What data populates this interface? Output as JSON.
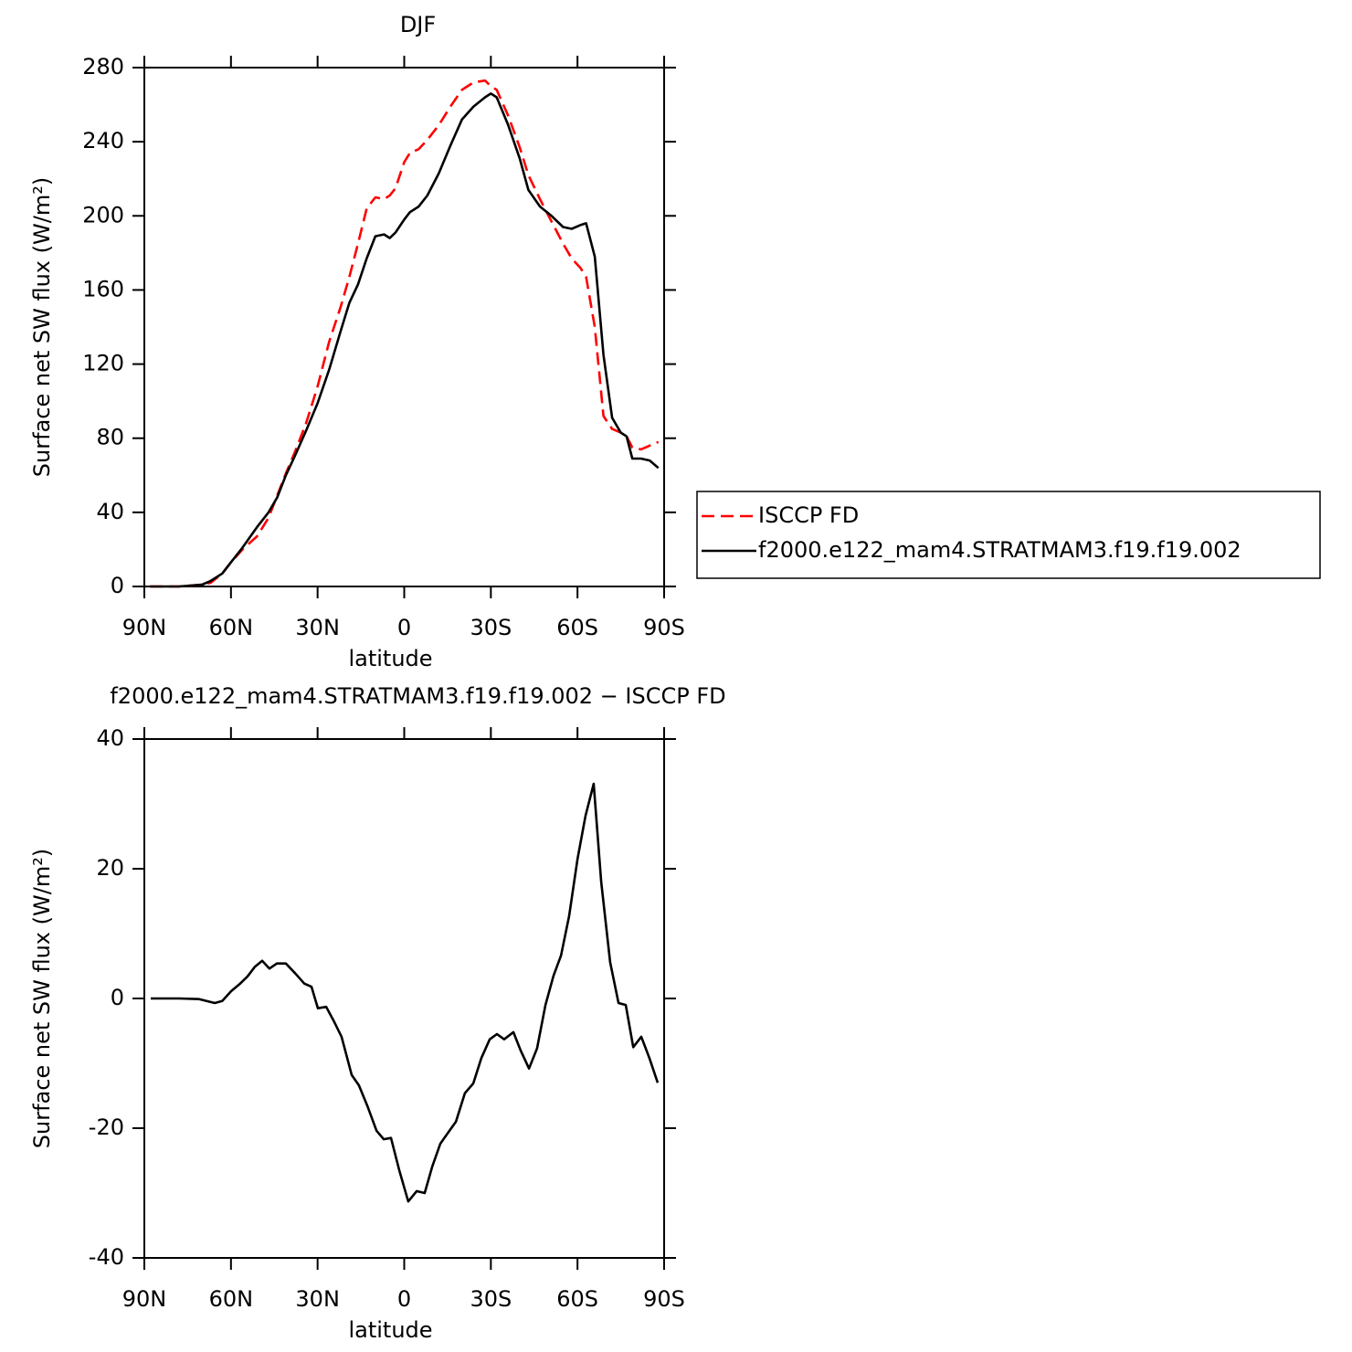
{
  "chart_data": [
    {
      "type": "line",
      "title": "DJF",
      "xlabel": "latitude",
      "ylabel": "Surface net SW flux (W/m²)",
      "x": [
        88,
        78,
        70,
        67,
        63,
        60,
        56,
        51,
        47,
        44,
        41,
        38,
        34,
        30,
        26,
        22,
        19,
        16,
        13,
        10,
        7,
        5,
        3,
        0,
        -2,
        -5,
        -8,
        -12,
        -16,
        -20,
        -24,
        -28,
        -30,
        -32,
        -36,
        -40,
        -43,
        -47,
        -51,
        -55,
        -58,
        -61,
        -63,
        -66,
        -69,
        -72,
        -75,
        -77,
        -79,
        -82,
        -85,
        -88
      ],
      "series": [
        {
          "name": "ISCCP FD",
          "color": "#ff0000",
          "dashed": true,
          "values": [
            0,
            0,
            1,
            2,
            7,
            13,
            20,
            27,
            37,
            49,
            61,
            72,
            88,
            108,
            132,
            151,
            167,
            185,
            204,
            210,
            209,
            211,
            215,
            229,
            234,
            236,
            241,
            249,
            259,
            268,
            272,
            273,
            270,
            268,
            254,
            237,
            222,
            209,
            197,
            185,
            177,
            172,
            167,
            140,
            92,
            85,
            83,
            81,
            75,
            74,
            76,
            78
          ]
        },
        {
          "name": "f2000.e122_mam4.STRATMAM3.f19.f19.002",
          "color": "#000000",
          "dashed": false,
          "values": [
            0,
            0,
            1,
            3,
            7,
            13,
            21,
            32,
            40,
            48,
            60,
            70,
            84,
            99,
            117,
            138,
            153,
            163,
            177,
            189,
            190,
            188,
            191,
            198,
            202,
            205,
            211,
            223,
            238,
            252,
            259,
            264,
            266,
            264,
            249,
            231,
            214,
            205,
            200,
            194,
            193,
            195,
            196,
            178,
            125,
            91,
            83,
            81,
            69,
            69,
            68,
            64
          ]
        }
      ],
      "xlim": [
        90,
        -90
      ],
      "xticks": [
        {
          "value": 90,
          "label": "90N"
        },
        {
          "value": 60,
          "label": "60N"
        },
        {
          "value": 30,
          "label": "30N"
        },
        0,
        {
          "value": -30,
          "label": "30S"
        },
        {
          "value": -60,
          "label": "60S"
        },
        {
          "value": -90,
          "label": "90S"
        }
      ],
      "ylim": [
        0,
        280
      ],
      "yticks": [
        0,
        40,
        80,
        120,
        160,
        200,
        240,
        280
      ],
      "legend": "right"
    },
    {
      "type": "line",
      "title": "f2000.e122_mam4.STRATMAM3.f19.f19.002 − ISCCP FD",
      "xlabel": "latitude",
      "ylabel": "Surface net SW flux (W/m²)",
      "x": [
        87.8,
        78,
        71,
        65.6,
        63,
        60,
        56.8,
        54.3,
        51.7,
        49.2,
        46.7,
        44.1,
        41,
        37.8,
        34.6,
        32.1,
        29.9,
        27,
        24.5,
        21.7,
        18.2,
        15.7,
        12.8,
        9.6,
        7.1,
        4.6,
        1.7,
        -1.4,
        -4.3,
        -7.1,
        -9.7,
        -12.5,
        -15,
        -17.9,
        -21,
        -23.9,
        -26.7,
        -29.6,
        -32.1,
        -34.6,
        -37.8,
        -40.3,
        -43.2,
        -46,
        -48.9,
        -51.7,
        -54.3,
        -57.1,
        -60,
        -62.8,
        -65.6,
        -68.2,
        -71.3,
        -74.2,
        -76.7,
        -79.3,
        -82.1,
        -84.9,
        -87.8
      ],
      "series": [
        {
          "color": "#000000",
          "dashed": false,
          "values": [
            0,
            0,
            -0.1,
            -0.7,
            -0.4,
            1.1,
            2.3,
            3.4,
            4.9,
            5.8,
            4.6,
            5.4,
            5.4,
            3.9,
            2.3,
            1.8,
            -1.5,
            -1.3,
            -3.4,
            -5.9,
            -11.8,
            -13.4,
            -16.5,
            -20.4,
            -21.7,
            -21.5,
            -26.5,
            -31.3,
            -29.7,
            -30,
            -25.9,
            -22.4,
            -20.8,
            -19,
            -14.6,
            -13.1,
            -9.2,
            -6.3,
            -5.5,
            -6.3,
            -5.2,
            -8,
            -10.8,
            -7.7,
            -1,
            3.5,
            6.6,
            12.7,
            21.5,
            28.2,
            33.1,
            18,
            5.6,
            -0.7,
            -1,
            -7.5,
            -5.9,
            -9.2,
            -13
          ]
        }
      ],
      "xlim": [
        90,
        -90
      ],
      "xticks": [
        {
          "value": 90,
          "label": "90N"
        },
        {
          "value": 60,
          "label": "60N"
        },
        {
          "value": 30,
          "label": "30N"
        },
        0,
        {
          "value": -30,
          "label": "30S"
        },
        {
          "value": -60,
          "label": "60S"
        },
        {
          "value": -90,
          "label": "90S"
        }
      ],
      "ylim": [
        -40,
        40
      ],
      "yticks": [
        -40,
        -20,
        0,
        20,
        40
      ]
    }
  ]
}
